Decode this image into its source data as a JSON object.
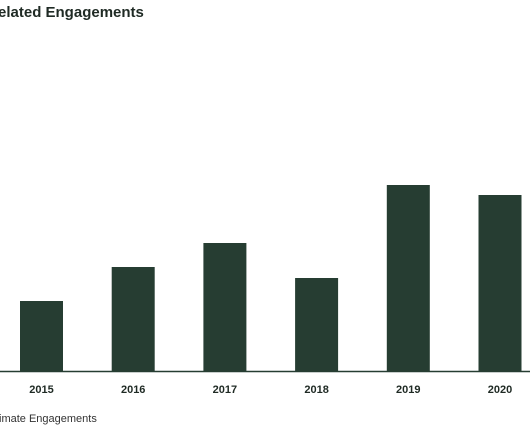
{
  "chart_data": {
    "type": "bar",
    "title": "elated Engagements",
    "categories": [
      "2015",
      "2016",
      "2017",
      "2018",
      "2019",
      "2020"
    ],
    "series": [
      {
        "name": "imate Engagements",
        "values": [
          70,
          104,
          128,
          93,
          186,
          176
        ]
      }
    ],
    "xlabel": "",
    "ylabel": "",
    "ylim": [
      0,
      260
    ],
    "grid": false,
    "legend": "bottom-left",
    "bar_color": "#263d32"
  }
}
